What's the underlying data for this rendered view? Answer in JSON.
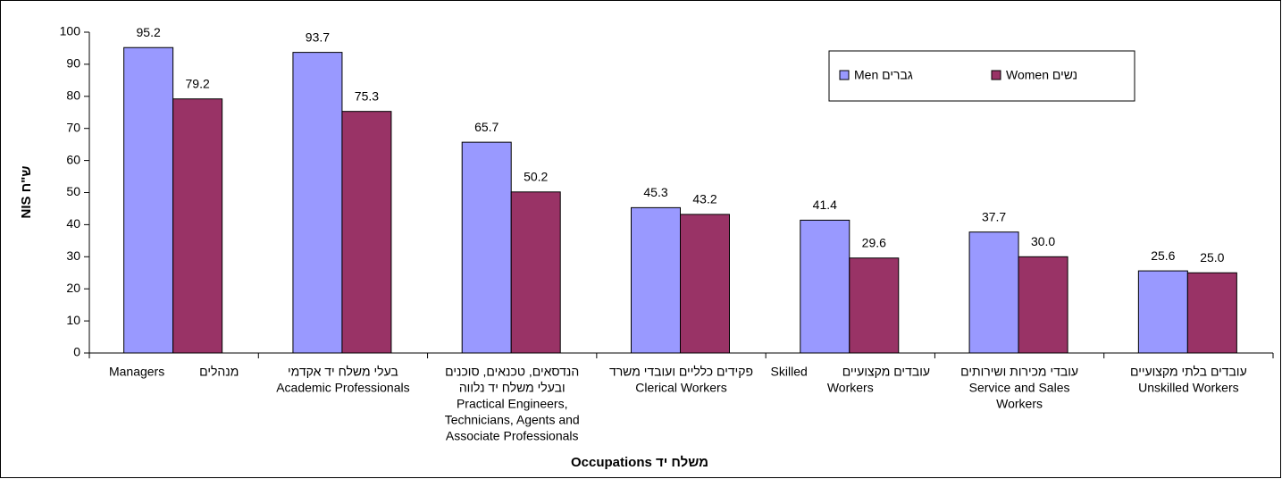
{
  "chart_data": {
    "type": "bar",
    "y_label": "NIS ש\"ח",
    "x_label": "Occupations משלח יד",
    "categories": [
      [
        "Managers          מנהלים"
      ],
      [
        "בעלי משלח יד אקדמי",
        "Academic Professionals"
      ],
      [
        "הנדסאים, טכנאים, סוכנים",
        "ובעלי משלח יד נלווה",
        "Practical Engineers,",
        "Technicians, Agents and",
        "Associate Professionals"
      ],
      [
        "פקידים כלליים ועובדי משרד",
        "Clerical Workers"
      ],
      [
        "Skilled          עובדים מקצועיים",
        "Workers"
      ],
      [
        "עובדי מכירות ושירותים",
        "Service and Sales",
        "Workers"
      ],
      [
        "עובדים בלתי מקצועיים",
        "Unskilled Workers"
      ]
    ],
    "series": [
      {
        "name": "Men גברים",
        "color": "#9999ff",
        "values": [
          95.2,
          93.7,
          65.7,
          45.3,
          41.4,
          37.7,
          25.6
        ],
        "value_labels": [
          "95.2",
          "93.7",
          "65.7",
          "45.3",
          "41.4",
          "37.7",
          "25.6"
        ]
      },
      {
        "name": "Women נשים",
        "color": "#993366",
        "values": [
          79.2,
          75.3,
          50.2,
          43.2,
          29.6,
          30.0,
          25.0
        ],
        "value_labels": [
          "79.2",
          "75.3",
          "50.2",
          "43.2",
          "29.6",
          "30.0",
          "25.0"
        ]
      }
    ],
    "ylim": [
      0,
      100
    ],
    "yticks": [
      0,
      10,
      20,
      30,
      40,
      50,
      60,
      70,
      80,
      90,
      100
    ],
    "legend": "upper right"
  }
}
